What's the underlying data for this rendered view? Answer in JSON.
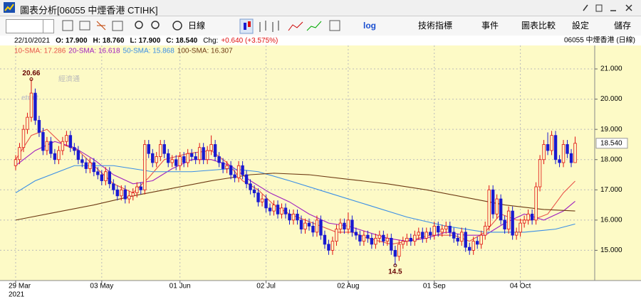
{
  "window": {
    "title": "圖表分析[06055 中煙香港 CTIHK]"
  },
  "toolbar": {
    "period": "日線",
    "log": "log",
    "indicators": "技術指標",
    "events": "事件",
    "compare": "圖表比較",
    "settings": "設定",
    "save": "儲存"
  },
  "info": {
    "date": "22/10/2021",
    "open": "O: 17.900",
    "high": "H: 18.760",
    "low": "L: 17.900",
    "close": "C: 18.540",
    "change_label": "Chg:",
    "change": "+0.640 (+3.575%)",
    "stock": "06055  中煙香港 (日線)"
  },
  "watermark": {
    "brand_cn": "經濟通",
    "brand": "etnet"
  },
  "chart_data": {
    "type": "candlestick",
    "xlim": [
      -4,
      148
    ],
    "xticks": [
      {
        "value": 0,
        "label": "29 Mar"
      },
      {
        "value": 22,
        "label": "03 May"
      },
      {
        "value": 42,
        "label": "01 Jun"
      },
      {
        "value": 64,
        "label": "02 Jul"
      },
      {
        "value": 85,
        "label": "02 Aug"
      },
      {
        "value": 107,
        "label": "01 Sep"
      },
      {
        "value": 129,
        "label": "04 Oct"
      }
    ],
    "year_label": "2021",
    "ylim": [
      14,
      21.4
    ],
    "yticks": [
      {
        "value": 15,
        "label": "15.000"
      },
      {
        "value": 16,
        "label": "16.000"
      },
      {
        "value": 17,
        "label": "17.000"
      },
      {
        "value": 18,
        "label": "18.000"
      },
      {
        "value": 19,
        "label": "19.000"
      },
      {
        "value": 20,
        "label": "20.000"
      },
      {
        "value": 21,
        "label": "21.000"
      }
    ],
    "grid": true,
    "up_color": "#e01010",
    "down_color": "#1a1ad0",
    "last_price": {
      "value": 18.54,
      "label": "18.540"
    },
    "ohlc": [
      [
        17.8,
        18.15,
        17.65,
        18.0
      ],
      [
        18.0,
        18.55,
        17.85,
        18.4
      ],
      [
        18.4,
        19.15,
        18.25,
        19.0
      ],
      [
        19.0,
        19.55,
        18.85,
        19.4
      ],
      [
        19.4,
        20.66,
        19.25,
        20.2
      ],
      [
        20.2,
        20.35,
        19.15,
        19.3
      ],
      [
        19.3,
        19.45,
        18.75,
        18.9
      ],
      [
        18.9,
        19.05,
        18.15,
        18.3
      ],
      [
        18.3,
        18.75,
        18.15,
        18.6
      ],
      [
        18.6,
        18.75,
        18.05,
        18.2
      ],
      [
        18.2,
        18.35,
        17.85,
        18.0
      ],
      [
        18.0,
        18.45,
        17.85,
        18.3
      ],
      [
        18.3,
        18.75,
        18.15,
        18.6
      ],
      [
        18.6,
        18.95,
        18.45,
        18.8
      ],
      [
        18.8,
        18.95,
        18.25,
        18.4
      ],
      [
        18.4,
        18.55,
        18.15,
        18.3
      ],
      [
        18.3,
        18.45,
        17.85,
        18.0
      ],
      [
        18.0,
        18.15,
        17.75,
        17.9
      ],
      [
        17.9,
        18.05,
        17.55,
        17.7
      ],
      [
        17.7,
        18.05,
        17.55,
        17.9
      ],
      [
        17.9,
        18.05,
        17.45,
        17.6
      ],
      [
        17.6,
        17.75,
        17.35,
        17.5
      ],
      [
        17.5,
        17.65,
        17.15,
        17.3
      ],
      [
        17.3,
        17.75,
        17.15,
        17.6
      ],
      [
        17.6,
        17.75,
        17.05,
        17.2
      ],
      [
        17.2,
        17.35,
        16.85,
        17.0
      ],
      [
        17.0,
        17.15,
        16.65,
        16.8
      ],
      [
        16.8,
        17.15,
        16.65,
        17.0
      ],
      [
        17.0,
        17.15,
        16.55,
        16.7
      ],
      [
        16.7,
        16.95,
        16.55,
        16.8
      ],
      [
        16.8,
        17.05,
        16.65,
        16.9
      ],
      [
        16.9,
        17.25,
        16.75,
        17.1
      ],
      [
        17.1,
        17.25,
        16.85,
        17.0
      ],
      [
        17.0,
        18.65,
        16.85,
        18.5
      ],
      [
        18.5,
        18.65,
        18.05,
        18.2
      ],
      [
        18.2,
        18.35,
        17.75,
        17.9
      ],
      [
        17.9,
        18.25,
        17.75,
        18.1
      ],
      [
        18.1,
        18.65,
        17.95,
        18.5
      ],
      [
        18.5,
        18.65,
        18.05,
        18.2
      ],
      [
        18.2,
        18.35,
        17.75,
        17.9
      ],
      [
        17.9,
        18.15,
        17.75,
        18.0
      ],
      [
        18.0,
        18.15,
        17.65,
        17.8
      ],
      [
        17.8,
        18.25,
        17.65,
        18.1
      ],
      [
        18.1,
        18.25,
        17.75,
        17.9
      ],
      [
        17.9,
        18.35,
        17.75,
        18.2
      ],
      [
        18.2,
        18.35,
        17.95,
        18.1
      ],
      [
        18.1,
        18.25,
        17.85,
        18.0
      ],
      [
        18.0,
        18.55,
        17.85,
        18.4
      ],
      [
        18.4,
        18.55,
        17.85,
        18.0
      ],
      [
        18.0,
        18.45,
        17.85,
        18.3
      ],
      [
        18.3,
        18.8,
        18.15,
        18.5
      ],
      [
        18.5,
        18.65,
        17.95,
        18.1
      ],
      [
        18.1,
        18.25,
        17.75,
        17.9
      ],
      [
        17.9,
        18.05,
        17.55,
        17.7
      ],
      [
        17.7,
        17.95,
        17.55,
        17.8
      ],
      [
        17.8,
        17.95,
        17.35,
        17.5
      ],
      [
        17.5,
        17.65,
        17.25,
        17.4
      ],
      [
        17.4,
        17.95,
        17.25,
        17.8
      ],
      [
        17.8,
        17.95,
        17.35,
        17.5
      ],
      [
        17.5,
        17.65,
        17.05,
        17.2
      ],
      [
        17.2,
        17.35,
        16.85,
        17.0
      ],
      [
        17.0,
        17.15,
        16.75,
        16.9
      ],
      [
        16.9,
        17.05,
        16.45,
        16.6
      ],
      [
        16.6,
        16.85,
        16.45,
        16.7
      ],
      [
        16.7,
        16.85,
        16.25,
        16.4
      ],
      [
        16.4,
        16.55,
        16.15,
        16.3
      ],
      [
        16.3,
        16.65,
        16.15,
        16.5
      ],
      [
        16.5,
        16.65,
        16.05,
        16.2
      ],
      [
        16.2,
        16.55,
        16.05,
        16.4
      ],
      [
        16.4,
        16.55,
        16.05,
        16.2
      ],
      [
        16.2,
        16.35,
        15.85,
        16.0
      ],
      [
        16.0,
        16.35,
        15.85,
        16.2
      ],
      [
        16.2,
        16.35,
        15.85,
        16.0
      ],
      [
        16.0,
        16.15,
        15.55,
        15.7
      ],
      [
        15.7,
        16.05,
        15.55,
        15.9
      ],
      [
        15.9,
        16.05,
        15.65,
        15.8
      ],
      [
        15.8,
        15.95,
        15.45,
        15.6
      ],
      [
        15.6,
        16.15,
        15.45,
        16.0
      ],
      [
        16.0,
        16.15,
        15.35,
        15.5
      ],
      [
        15.5,
        15.65,
        15.05,
        15.2
      ],
      [
        15.2,
        15.35,
        14.85,
        15.0
      ],
      [
        15.0,
        15.45,
        14.85,
        15.3
      ],
      [
        15.3,
        15.85,
        15.15,
        15.7
      ],
      [
        15.7,
        16.05,
        15.55,
        15.9
      ],
      [
        15.9,
        16.05,
        15.55,
        15.7
      ],
      [
        15.7,
        16.25,
        15.55,
        16.0
      ],
      [
        16.0,
        16.15,
        15.45,
        15.6
      ],
      [
        15.6,
        15.75,
        15.35,
        15.5
      ],
      [
        15.5,
        15.65,
        15.15,
        15.3
      ],
      [
        15.3,
        15.65,
        15.15,
        15.5
      ],
      [
        15.5,
        15.65,
        15.25,
        15.4
      ],
      [
        15.4,
        15.55,
        15.05,
        15.2
      ],
      [
        15.2,
        15.55,
        15.05,
        15.4
      ],
      [
        15.4,
        15.65,
        15.25,
        15.5
      ],
      [
        15.5,
        15.65,
        15.15,
        15.3
      ],
      [
        15.3,
        15.55,
        15.15,
        15.4
      ],
      [
        15.4,
        15.55,
        14.85,
        15.0
      ],
      [
        15.0,
        15.15,
        14.5,
        14.8
      ],
      [
        14.8,
        15.35,
        14.65,
        15.2
      ],
      [
        15.2,
        15.45,
        15.05,
        15.3
      ],
      [
        15.3,
        15.55,
        15.15,
        15.4
      ],
      [
        15.4,
        15.55,
        15.15,
        15.3
      ],
      [
        15.3,
        15.65,
        15.15,
        15.5
      ],
      [
        15.5,
        15.75,
        15.35,
        15.6
      ],
      [
        15.6,
        15.75,
        15.25,
        15.4
      ],
      [
        15.4,
        15.75,
        15.25,
        15.6
      ],
      [
        15.6,
        15.75,
        15.35,
        15.5
      ],
      [
        15.5,
        15.95,
        15.35,
        15.8
      ],
      [
        15.8,
        15.95,
        15.45,
        15.6
      ],
      [
        15.6,
        15.85,
        15.45,
        15.7
      ],
      [
        15.7,
        15.95,
        15.55,
        15.8
      ],
      [
        15.8,
        15.95,
        15.45,
        15.6
      ],
      [
        15.6,
        15.75,
        15.25,
        15.4
      ],
      [
        15.4,
        15.55,
        15.15,
        15.3
      ],
      [
        15.3,
        15.75,
        15.15,
        15.6
      ],
      [
        15.6,
        15.75,
        14.95,
        15.1
      ],
      [
        15.1,
        15.25,
        14.85,
        15.0
      ],
      [
        15.0,
        15.45,
        14.85,
        15.3
      ],
      [
        15.3,
        15.45,
        15.05,
        15.2
      ],
      [
        15.2,
        15.65,
        15.05,
        15.5
      ],
      [
        15.5,
        15.95,
        15.35,
        15.8
      ],
      [
        15.8,
        17.15,
        15.65,
        17.0
      ],
      [
        17.0,
        17.15,
        16.05,
        16.2
      ],
      [
        16.2,
        16.85,
        16.05,
        16.7
      ],
      [
        16.7,
        16.85,
        15.85,
        16.0
      ],
      [
        16.0,
        16.15,
        15.55,
        15.7
      ],
      [
        15.7,
        16.45,
        15.55,
        16.3
      ],
      [
        16.3,
        16.45,
        15.35,
        15.5
      ],
      [
        15.5,
        15.75,
        15.35,
        15.6
      ],
      [
        15.6,
        16.05,
        15.45,
        15.9
      ],
      [
        15.9,
        16.15,
        15.75,
        16.0
      ],
      [
        16.0,
        16.35,
        15.85,
        16.2
      ],
      [
        16.2,
        16.35,
        15.85,
        16.0
      ],
      [
        16.0,
        17.25,
        15.85,
        17.1
      ],
      [
        17.1,
        18.15,
        16.95,
        18.0
      ],
      [
        18.0,
        18.65,
        17.85,
        18.5
      ],
      [
        18.5,
        18.9,
        18.15,
        18.3
      ],
      [
        18.3,
        18.95,
        18.15,
        18.8
      ],
      [
        18.8,
        18.95,
        17.85,
        18.0
      ],
      [
        18.0,
        18.15,
        17.75,
        17.9
      ],
      [
        17.9,
        18.65,
        17.75,
        18.5
      ],
      [
        18.5,
        18.65,
        18.05,
        18.2
      ],
      [
        18.2,
        18.35,
        17.75,
        17.9
      ],
      [
        17.9,
        18.76,
        17.9,
        18.54
      ]
    ],
    "series": [
      {
        "name": "10-SMA: 17.286",
        "color": "#e8524a",
        "x": [
          0,
          4,
          8,
          12,
          16,
          20,
          25,
          30,
          34,
          38,
          44,
          50,
          54,
          58,
          62,
          66,
          70,
          76,
          82,
          86,
          90,
          96,
          100,
          106,
          112,
          116,
          120,
          124,
          128,
          132,
          136,
          140,
          143
        ],
        "values": [
          18.0,
          18.8,
          19.0,
          18.5,
          18.3,
          17.8,
          17.2,
          16.9,
          17.4,
          18.0,
          18.2,
          18.3,
          17.9,
          17.3,
          17.0,
          16.5,
          16.2,
          15.9,
          15.6,
          15.6,
          15.4,
          15.2,
          15.3,
          15.5,
          15.5,
          15.3,
          15.6,
          16.2,
          16.0,
          16.0,
          16.2,
          16.9,
          17.29
        ]
      },
      {
        "name": "20-SMA: 16.618",
        "color": "#a020c0",
        "x": [
          0,
          5,
          10,
          15,
          20,
          25,
          30,
          35,
          40,
          45,
          50,
          55,
          60,
          65,
          70,
          75,
          80,
          85,
          90,
          95,
          100,
          105,
          110,
          115,
          120,
          125,
          130,
          135,
          140,
          143
        ],
        "values": [
          17.8,
          18.3,
          18.6,
          18.4,
          18.0,
          17.5,
          17.2,
          17.3,
          17.7,
          18.0,
          18.0,
          17.8,
          17.3,
          16.9,
          16.6,
          16.2,
          15.9,
          15.8,
          15.6,
          15.4,
          15.3,
          15.4,
          15.6,
          15.5,
          15.5,
          15.9,
          16.2,
          16.0,
          16.3,
          16.62
        ]
      },
      {
        "name": "50-SMA: 15.868",
        "color": "#3a8ee6",
        "x": [
          0,
          5,
          15,
          25,
          35,
          45,
          55,
          62,
          70,
          80,
          90,
          100,
          110,
          120,
          130,
          138,
          143
        ],
        "values": [
          16.9,
          17.3,
          17.8,
          17.8,
          17.6,
          17.6,
          17.7,
          17.6,
          17.3,
          16.9,
          16.5,
          16.1,
          15.8,
          15.6,
          15.6,
          15.7,
          15.87
        ]
      },
      {
        "name": "100-SMA: 16.307",
        "color": "#6e3a14",
        "x": [
          0,
          10,
          20,
          30,
          40,
          50,
          60,
          66,
          75,
          85,
          95,
          105,
          115,
          125,
          135,
          143
        ],
        "values": [
          16.0,
          16.25,
          16.5,
          16.8,
          17.05,
          17.3,
          17.5,
          17.55,
          17.5,
          17.35,
          17.2,
          17.0,
          16.75,
          16.5,
          16.35,
          16.3
        ]
      }
    ]
  }
}
